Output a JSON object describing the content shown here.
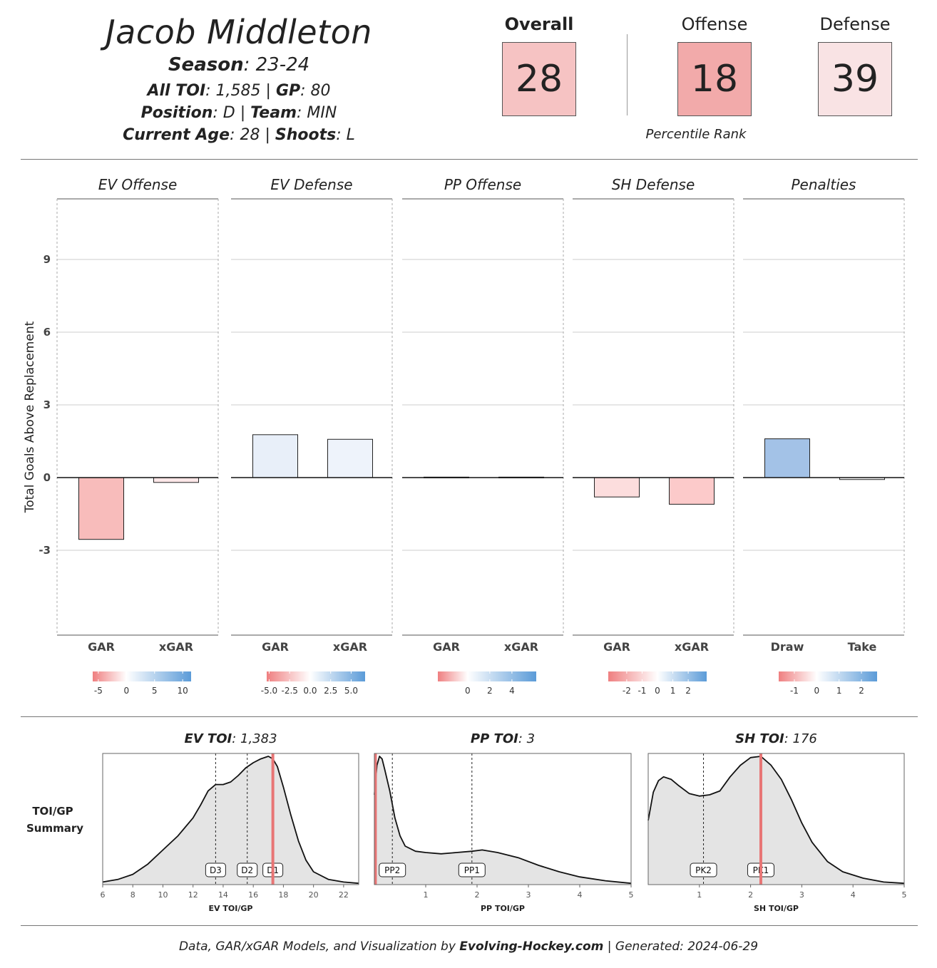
{
  "player": {
    "name": "Jacob Middleton",
    "season_label": "Season",
    "season": ": 23-24",
    "toi_label": "All TOI",
    "toi": ": 1,585 | ",
    "gp_label": "GP",
    "gp": ": 80",
    "position_label": "Position",
    "position": ": D | ",
    "team_label": "Team",
    "team": ": MIN",
    "age_label": "Current Age",
    "age": ": 28 | ",
    "shoots_label": "Shoots",
    "shoots": ": L"
  },
  "ranks": {
    "overall_label": "Overall",
    "overall": "28",
    "overall_color": "#f6c3c3",
    "offense_label": "Offense",
    "offense": "18",
    "offense_color": "#f2aaaa",
    "defense_label": "Defense",
    "defense": "39",
    "defense_color": "#f9e3e4",
    "caption": "Percentile Rank"
  },
  "chart_data": [
    {
      "type": "bar",
      "ylabel": "Total Goals Above Replacement",
      "ylim": [
        -6.5,
        11.5
      ],
      "yticks": [
        -3,
        0,
        3,
        6,
        9
      ],
      "panels": [
        {
          "title": "EV Offense",
          "categories": [
            "GAR",
            "xGAR"
          ],
          "values": [
            -2.55,
            -0.2
          ],
          "colors": [
            "#f8bcbb",
            "#fde7e8"
          ],
          "scale_ticks": [
            "-5",
            "0",
            "5",
            "10"
          ],
          "scale_range": [
            -6,
            11.5
          ]
        },
        {
          "title": "EV Defense",
          "categories": [
            "GAR",
            "xGAR"
          ],
          "values": [
            1.77,
            1.58
          ],
          "colors": [
            "#e8eff9",
            "#eef3fb"
          ],
          "scale_ticks": [
            "-5.0",
            "-2.5",
            "0.0",
            "2.5",
            "5.0"
          ],
          "scale_range": [
            -5.3,
            6.7
          ]
        },
        {
          "title": "PP Offense",
          "categories": [
            "GAR",
            "xGAR"
          ],
          "values": [
            0.02,
            0.02
          ],
          "colors": [
            "#ffffff",
            "#ffffff"
          ],
          "scale_ticks": [
            "0",
            "2",
            "4"
          ],
          "scale_range": [
            -2.7,
            6.2
          ]
        },
        {
          "title": "SH Defense",
          "categories": [
            "GAR",
            "xGAR"
          ],
          "values": [
            -0.8,
            -1.1
          ],
          "colors": [
            "#fcdddd",
            "#fccaca"
          ],
          "scale_ticks": [
            "-2",
            "-1",
            "0",
            "1",
            "2"
          ],
          "scale_range": [
            -3.2,
            3.2
          ]
        },
        {
          "title": "Penalties",
          "categories": [
            "Draw",
            "Take"
          ],
          "values": [
            1.6,
            -0.08
          ],
          "colors": [
            "#a3c2e7",
            "#ffffff"
          ],
          "scale_ticks": [
            "-1",
            "0",
            "1",
            "2"
          ],
          "scale_range": [
            -1.7,
            2.7
          ]
        }
      ]
    },
    {
      "type": "area",
      "row_label_1": "TOI/GP",
      "row_label_2": "Summary",
      "panels": [
        {
          "title_bold": "EV TOI",
          "title_value": ": 1,383",
          "xlabel": "EV TOI/GP",
          "xlim": [
            6,
            23
          ],
          "xticks": [
            6,
            8,
            10,
            12,
            14,
            16,
            18,
            20,
            22
          ],
          "player_value": 17.3,
          "density_x": [
            6,
            7,
            8,
            9,
            10,
            11,
            12,
            12.5,
            13,
            13.5,
            14,
            14.5,
            15,
            15.5,
            16,
            16.5,
            17,
            17.3,
            17.6,
            18,
            18.5,
            19,
            19.5,
            20,
            21,
            22,
            23
          ],
          "density_y": [
            0.02,
            0.04,
            0.08,
            0.16,
            0.27,
            0.38,
            0.52,
            0.62,
            0.73,
            0.78,
            0.78,
            0.8,
            0.85,
            0.91,
            0.95,
            0.98,
            1.0,
            0.98,
            0.92,
            0.76,
            0.54,
            0.34,
            0.19,
            0.1,
            0.04,
            0.02,
            0.01
          ],
          "markers": [
            {
              "label": "D3",
              "x": 13.5
            },
            {
              "label": "D2",
              "x": 15.6
            },
            {
              "label": "D1",
              "x": 17.3
            }
          ]
        },
        {
          "title_bold": "PP TOI",
          "title_value": ": 3",
          "xlabel": "PP TOI/GP",
          "xlim": [
            0,
            5
          ],
          "xticks": [
            1,
            2,
            3,
            4,
            5
          ],
          "player_value": 0.02,
          "density_x": [
            0,
            0.05,
            0.1,
            0.15,
            0.2,
            0.3,
            0.4,
            0.5,
            0.6,
            0.8,
            1.0,
            1.3,
            1.6,
            1.9,
            2.1,
            2.4,
            2.8,
            3.2,
            3.6,
            4.0,
            4.5,
            5.0
          ],
          "density_y": [
            0.7,
            0.93,
            1.0,
            0.98,
            0.9,
            0.73,
            0.52,
            0.38,
            0.3,
            0.26,
            0.25,
            0.24,
            0.25,
            0.26,
            0.27,
            0.25,
            0.21,
            0.15,
            0.1,
            0.06,
            0.03,
            0.01
          ],
          "markers": [
            {
              "label": "PP2",
              "x": 0.35
            },
            {
              "label": "PP1",
              "x": 1.9
            }
          ]
        },
        {
          "title_bold": "SH TOI",
          "title_value": ": 176",
          "xlabel": "SH TOI/GP",
          "xlim": [
            0,
            5
          ],
          "xticks": [
            1,
            2,
            3,
            4,
            5
          ],
          "player_value": 2.2,
          "density_x": [
            0,
            0.1,
            0.2,
            0.3,
            0.45,
            0.6,
            0.8,
            1.0,
            1.2,
            1.4,
            1.6,
            1.8,
            2.0,
            2.2,
            2.4,
            2.6,
            2.8,
            3.0,
            3.2,
            3.5,
            3.8,
            4.2,
            4.6,
            5.0
          ],
          "density_y": [
            0.5,
            0.72,
            0.81,
            0.84,
            0.82,
            0.77,
            0.71,
            0.69,
            0.7,
            0.73,
            0.84,
            0.93,
            0.99,
            1.0,
            0.93,
            0.82,
            0.66,
            0.48,
            0.33,
            0.18,
            0.1,
            0.05,
            0.02,
            0.01
          ],
          "markers": [
            {
              "label": "PK2",
              "x": 1.08
            },
            {
              "label": "PK1",
              "x": 2.2
            }
          ]
        }
      ]
    }
  ],
  "footer": {
    "prefix": "Data, GAR/xGAR Models, and Visualization by ",
    "brand": "Evolving-Hockey.com",
    "suffix": " | Generated: 2024-06-29"
  },
  "colors": {
    "player_line": "#e87575",
    "density_fill": "#e4e4e4",
    "grid": "#cccccc"
  }
}
